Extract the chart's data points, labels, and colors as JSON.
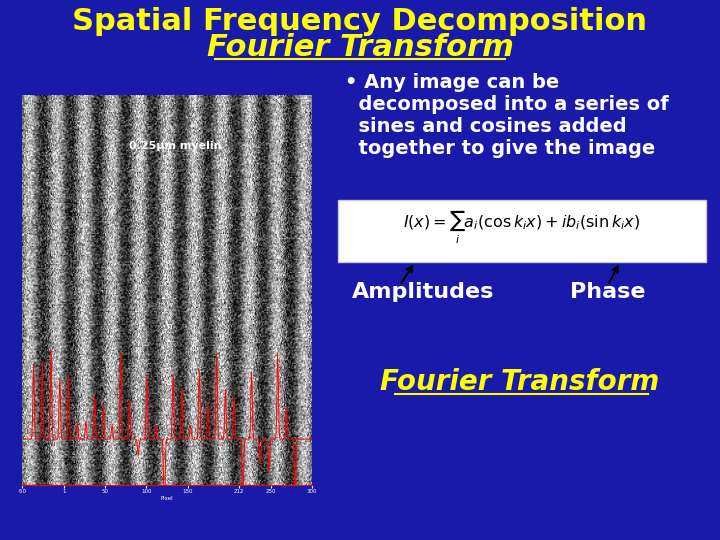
{
  "bg_color": "#1a1aaa",
  "title_line1": "Spatial Frequency Decomposition",
  "title_line2": "Fourier Transform",
  "title_color": "#ffff00",
  "title_fontsize": 22,
  "image_label": "0.25μm myelin",
  "bullet_lines": [
    "• Any image can be",
    "  decomposed into a series of",
    "  sines and cosines added",
    "  together to give the image"
  ],
  "bullet_color": "#ffffff",
  "bullet_fontsize": 14,
  "formula_color": "#ffffff",
  "amplitudes_label": "Amplitudes",
  "phase_label": "Phase",
  "label_color": "#ffffff",
  "label_fontsize": 16,
  "footer_text": "Fourier Transform",
  "footer_color": "#ffff00",
  "footer_fontsize": 20,
  "arrow_color": "#000000",
  "xtick_labels": [
    "-50",
    "1",
    "50",
    "100",
    "150",
    "212",
    "250",
    "300"
  ],
  "xtick_vals": [
    -50,
    1,
    50,
    100,
    150,
    212,
    250,
    300
  ]
}
